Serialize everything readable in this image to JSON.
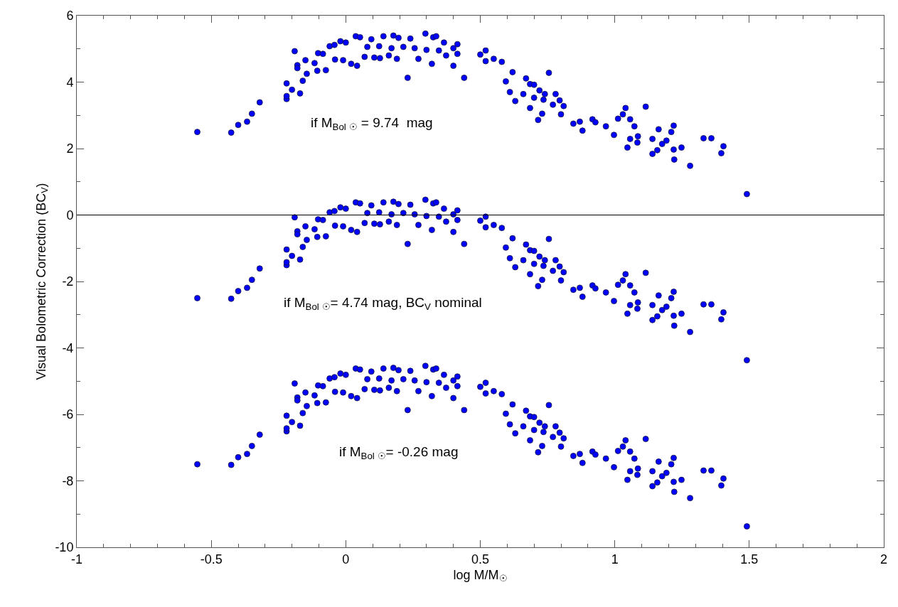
{
  "chart_data": {
    "type": "scatter",
    "xlabel": "log M/M$_{☉}$",
    "ylabel": "Visual Bolometric Correction (BC$_{V}$)",
    "x": [
      -0.552,
      -0.426,
      -0.4,
      -0.367,
      -0.349,
      -0.32,
      -0.22,
      -0.22,
      -0.22,
      -0.2,
      -0.19,
      -0.18,
      -0.18,
      -0.17,
      -0.16,
      -0.15,
      -0.145,
      -0.116,
      -0.106,
      -0.103,
      -0.085,
      -0.074,
      -0.06,
      -0.042,
      -0.04,
      -0.02,
      -0.01,
      0.0,
      0.02,
      0.037,
      0.042,
      0.053,
      0.07,
      0.08,
      0.095,
      0.106,
      0.124,
      0.127,
      0.14,
      0.16,
      0.17,
      0.177,
      0.19,
      0.196,
      0.214,
      0.23,
      0.24,
      0.256,
      0.27,
      0.296,
      0.3,
      0.32,
      0.325,
      0.336,
      0.346,
      0.365,
      0.373,
      0.4,
      0.4,
      0.415,
      0.415,
      0.44,
      0.5,
      0.52,
      0.52,
      0.55,
      0.58,
      0.595,
      0.61,
      0.62,
      0.63,
      0.66,
      0.67,
      0.685,
      0.7,
      0.72,
      0.7,
      0.685,
      0.74,
      0.735,
      0.755,
      0.78,
      0.795,
      0.81,
      0.77,
      0.8,
      0.73,
      0.715,
      0.846,
      0.87,
      0.88,
      0.917,
      0.967,
      0.928,
      0.997,
      1.012,
      1.04,
      1.03,
      1.047,
      1.057,
      1.057,
      1.073,
      1.084,
      1.086,
      1.115,
      1.14,
      1.14,
      1.158,
      1.163,
      1.176,
      1.192,
      1.21,
      1.219,
      1.219,
      1.221,
      1.248,
      1.28,
      1.33,
      1.359,
      1.396,
      1.404,
      1.491
    ],
    "series": [
      {
        "color": "#0000ff",
        "values": [
          2.5,
          2.48,
          2.71,
          2.81,
          3.05,
          3.39,
          3.49,
          3.58,
          3.96,
          3.77,
          4.93,
          4.51,
          4.42,
          3.66,
          4.04,
          4.66,
          4.25,
          4.57,
          4.34,
          4.87,
          4.85,
          4.36,
          5.08,
          5.12,
          4.68,
          5.23,
          4.66,
          5.19,
          4.55,
          5.38,
          4.49,
          5.35,
          4.76,
          5.06,
          5.29,
          4.74,
          5.08,
          4.72,
          5.38,
          4.8,
          5.02,
          5.4,
          4.7,
          5.33,
          5.06,
          4.13,
          5.31,
          5.02,
          4.7,
          5.46,
          4.97,
          4.55,
          5.35,
          5.38,
          4.95,
          5.19,
          4.8,
          5.02,
          4.49,
          5.14,
          4.85,
          4.13,
          4.83,
          4.95,
          4.63,
          4.7,
          4.61,
          4.02,
          3.7,
          4.3,
          3.43,
          3.64,
          4.11,
          3.94,
          3.92,
          3.75,
          3.53,
          3.22,
          3.64,
          3.47,
          4.28,
          3.64,
          3.45,
          3.28,
          3.32,
          3.03,
          3.05,
          2.86,
          2.75,
          2.81,
          2.54,
          2.88,
          2.67,
          2.79,
          2.41,
          2.9,
          3.22,
          3.03,
          2.03,
          2.88,
          2.29,
          2.67,
          2.18,
          2.37,
          3.26,
          2.29,
          1.84,
          1.95,
          2.58,
          2.14,
          2.24,
          2.5,
          2.69,
          1.97,
          1.67,
          2.03,
          1.48,
          2.31,
          2.31,
          1.86,
          2.07,
          0.63
        ]
      },
      {
        "color": "#0000ff",
        "values": [
          -2.5,
          -2.52,
          -2.29,
          -2.19,
          -1.95,
          -1.61,
          -1.51,
          -1.42,
          -1.04,
          -1.23,
          -0.07,
          -0.49,
          -0.58,
          -1.34,
          -0.96,
          -0.34,
          -0.75,
          -0.43,
          -0.66,
          -0.13,
          -0.15,
          -0.64,
          0.08,
          0.12,
          -0.32,
          0.23,
          -0.34,
          0.19,
          -0.45,
          0.38,
          -0.51,
          0.35,
          -0.24,
          0.06,
          0.29,
          -0.26,
          0.08,
          -0.28,
          0.38,
          -0.2,
          0.02,
          0.4,
          -0.3,
          0.33,
          0.06,
          -0.87,
          0.31,
          0.02,
          -0.3,
          0.46,
          -0.03,
          -0.45,
          0.35,
          0.38,
          -0.05,
          0.19,
          -0.2,
          0.02,
          -0.51,
          0.14,
          -0.15,
          -0.87,
          -0.17,
          -0.05,
          -0.37,
          -0.3,
          -0.39,
          -0.98,
          -1.3,
          -0.7,
          -1.57,
          -1.36,
          -0.89,
          -1.06,
          -1.08,
          -1.25,
          -1.47,
          -1.78,
          -1.36,
          -1.53,
          -0.72,
          -1.36,
          -1.55,
          -1.72,
          -1.68,
          -1.97,
          -1.95,
          -2.14,
          -2.25,
          -2.19,
          -2.46,
          -2.12,
          -2.33,
          -2.21,
          -2.59,
          -2.1,
          -1.78,
          -1.97,
          -2.97,
          -2.12,
          -2.71,
          -2.33,
          -2.82,
          -2.63,
          -1.74,
          -2.71,
          -3.16,
          -3.05,
          -2.42,
          -2.86,
          -2.76,
          -2.5,
          -2.31,
          -3.03,
          -3.33,
          -2.97,
          -3.52,
          -2.69,
          -2.69,
          -3.14,
          -2.93,
          -4.37
        ]
      },
      {
        "color": "#0000ff",
        "values": [
          -7.5,
          -7.52,
          -7.29,
          -7.19,
          -6.95,
          -6.61,
          -6.51,
          -6.42,
          -6.04,
          -6.23,
          -5.07,
          -5.49,
          -5.58,
          -6.34,
          -5.96,
          -5.34,
          -5.75,
          -5.43,
          -5.66,
          -5.13,
          -5.15,
          -5.64,
          -4.92,
          -4.88,
          -5.32,
          -4.77,
          -5.34,
          -4.81,
          -5.45,
          -4.62,
          -5.51,
          -4.65,
          -5.24,
          -4.94,
          -4.71,
          -5.26,
          -4.92,
          -5.28,
          -4.62,
          -5.2,
          -4.98,
          -4.6,
          -5.3,
          -4.67,
          -4.94,
          -5.87,
          -4.69,
          -4.98,
          -5.3,
          -4.54,
          -5.03,
          -5.45,
          -4.65,
          -4.62,
          -5.05,
          -4.81,
          -5.2,
          -4.98,
          -5.51,
          -4.86,
          -5.15,
          -5.87,
          -5.17,
          -5.05,
          -5.37,
          -5.3,
          -5.39,
          -5.98,
          -6.3,
          -5.7,
          -6.57,
          -6.36,
          -5.89,
          -6.06,
          -6.08,
          -6.25,
          -6.47,
          -6.78,
          -6.36,
          -6.53,
          -5.72,
          -6.36,
          -6.55,
          -6.72,
          -6.68,
          -6.97,
          -6.95,
          -7.14,
          -7.25,
          -7.19,
          -7.46,
          -7.12,
          -7.33,
          -7.21,
          -7.59,
          -7.1,
          -6.78,
          -6.97,
          -7.97,
          -7.12,
          -7.71,
          -7.33,
          -7.82,
          -7.63,
          -6.74,
          -7.71,
          -8.16,
          -8.05,
          -7.42,
          -7.86,
          -7.76,
          -7.5,
          -7.31,
          -8.03,
          -8.33,
          -7.97,
          -8.52,
          -7.69,
          -7.69,
          -8.14,
          -7.93,
          -9.37
        ]
      }
    ],
    "marker": "circle",
    "xlim": [
      -1,
      2
    ],
    "xticks": [
      -1,
      -0.5,
      0,
      0.5,
      1,
      1.5,
      2
    ],
    "ylim": [
      -10,
      6
    ],
    "yticks": [
      -10,
      -8,
      -6,
      -4,
      -2,
      0,
      2,
      4,
      6
    ],
    "ref_lines": [
      {
        "axis": "y",
        "value": 0,
        "color": "#000000"
      }
    ],
    "annotations": [
      "if M$_{Bol ☉}$ = 9.74  mag",
      "if M$_{Bol ☉}$= 4.74 mag, BC$_{V}$ nominal",
      "if M$_{Bol ☉}$= -0.26 mag"
    ]
  }
}
